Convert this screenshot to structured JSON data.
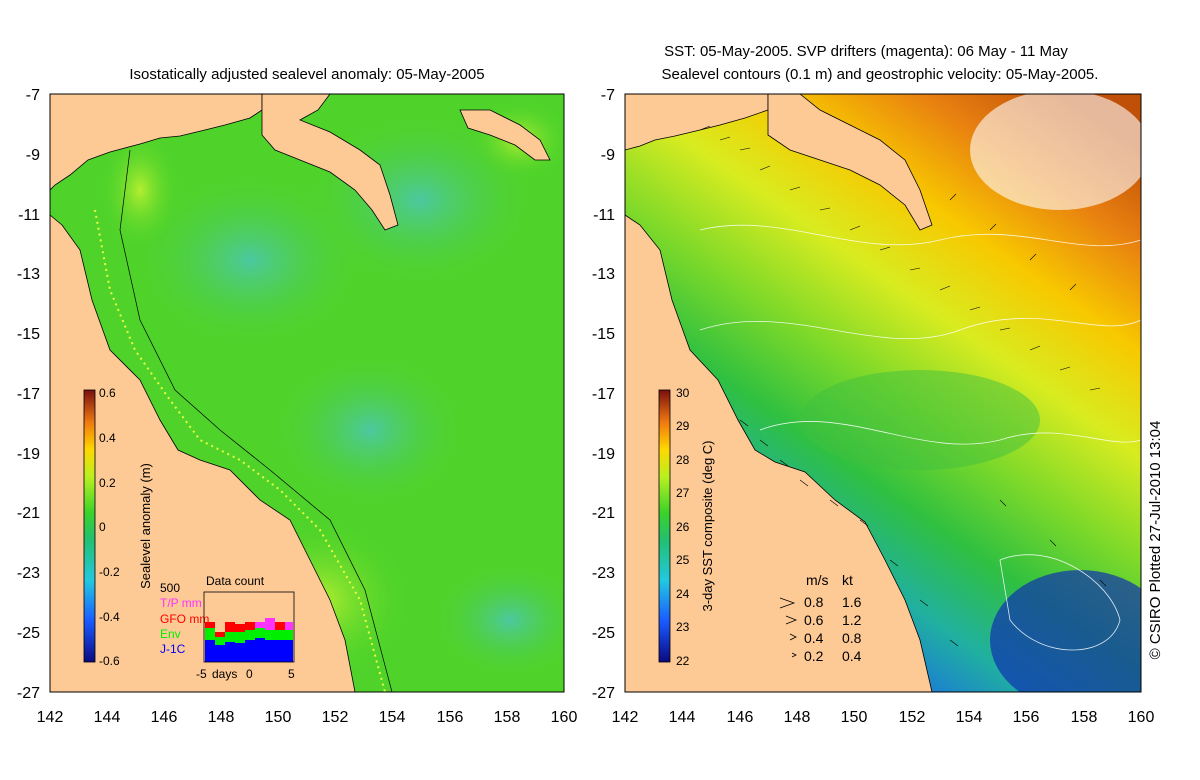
{
  "left_panel": {
    "title": "Isostatically adjusted sealevel anomaly: 05-May-2005",
    "colorbar_label": "Sealevel anomaly (m)",
    "colorbar_ticks": [
      "0.6",
      "0.4",
      "0.2",
      "0",
      "-0.2",
      "-0.4",
      "-0.6"
    ],
    "inset": {
      "title": "Data count",
      "ymax_label": "500",
      "xlabel": "days",
      "xtick_labels": [
        "-5",
        "0",
        "5"
      ],
      "legend": [
        {
          "label": "T/P mm",
          "color": "#ff33ff"
        },
        {
          "label": "GFO mm",
          "color": "#ff0000"
        },
        {
          "label": "Env",
          "color": "#00ee00"
        },
        {
          "label": "J-1C",
          "color": "#0000ff"
        }
      ]
    }
  },
  "right_panel": {
    "title_line1": "SST: 05-May-2005. SVP drifters (magenta): 06 May - 11 May",
    "title_line2": "Sealevel contours (0.1 m) and geostrophic velocity: 05-May-2005.",
    "colorbar_label": "3-day SST composite (deg C)",
    "colorbar_ticks": [
      "30",
      "29",
      "28",
      "27",
      "26",
      "25",
      "24",
      "23",
      "22"
    ],
    "velocity_key": {
      "header_ms": "m/s",
      "header_kt": "kt",
      "rows": [
        {
          "ms": "0.8",
          "kt": "1.6"
        },
        {
          "ms": "0.6",
          "kt": "1.2"
        },
        {
          "ms": "0.4",
          "kt": "0.8"
        },
        {
          "ms": "0.2",
          "kt": "0.4"
        }
      ]
    }
  },
  "axes": {
    "lat_ticks": [
      "-7",
      "-9",
      "-11",
      "-13",
      "-15",
      "-17",
      "-19",
      "-21",
      "-23",
      "-25",
      "-27"
    ],
    "lon_ticks": [
      "142",
      "144",
      "146",
      "148",
      "150",
      "152",
      "154",
      "156",
      "158",
      "160"
    ]
  },
  "credit": "© CSIRO Plotted 27-Jul-2010 13:04",
  "colors": {
    "land": "#fdc995",
    "sla_ocean": "#4fd32a",
    "sst_warm": "#e07a10",
    "sst_mid": "#9be02a",
    "sst_cool": "#1a5ae0"
  }
}
